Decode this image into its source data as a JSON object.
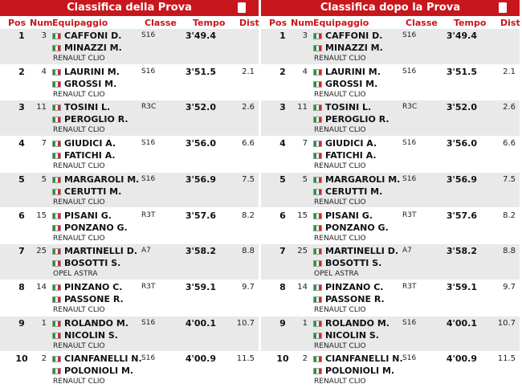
{
  "panels": [
    {
      "title": "Classifica della Prova"
    },
    {
      "title": "Classifica dopo la Prova"
    }
  ],
  "columns": {
    "pos": "Pos",
    "num": "Num",
    "crew": "Equipaggio",
    "class": "Classe",
    "time": "Tempo",
    "dist": "Dist"
  },
  "rows": [
    {
      "pos": 1,
      "num": 3,
      "driver": "CAFFONI D.",
      "codriver": "MINAZZI M.",
      "car": "RENAULT CLIO",
      "class": "S16",
      "time": "3'49.4",
      "dist": null
    },
    {
      "pos": 2,
      "num": 4,
      "driver": "LAURINI M.",
      "codriver": "GROSSI M.",
      "car": "RENAULT CLIO",
      "class": "S16",
      "time": "3'51.5",
      "dist": 2.1
    },
    {
      "pos": 3,
      "num": 11,
      "driver": "TOSINI L.",
      "codriver": "PEROGLIO R.",
      "car": "RENAULT CLIO",
      "class": "R3C",
      "time": "3'52.0",
      "dist": 2.6
    },
    {
      "pos": 4,
      "num": 7,
      "driver": "GIUDICI A.",
      "codriver": "FATICHI A.",
      "car": "RENAULT CLIO",
      "class": "S16",
      "time": "3'56.0",
      "dist": 6.6
    },
    {
      "pos": 5,
      "num": 5,
      "driver": "MARGAROLI M.",
      "codriver": "CERUTTI M.",
      "car": "RENAULT CLIO",
      "class": "S16",
      "time": "3'56.9",
      "dist": 7.5
    },
    {
      "pos": 6,
      "num": 15,
      "driver": "PISANI G.",
      "codriver": "PONZANO G.",
      "car": "RENAULT CLIO",
      "class": "R3T",
      "time": "3'57.6",
      "dist": 8.2
    },
    {
      "pos": 7,
      "num": 25,
      "driver": "MARTINELLI D.",
      "codriver": "BOSOTTI S.",
      "car": "OPEL ASTRA",
      "class": "A7",
      "time": "3'58.2",
      "dist": 8.8
    },
    {
      "pos": 8,
      "num": 14,
      "driver": "PINZANO C.",
      "codriver": "PASSONE R.",
      "car": "RENAULT CLIO",
      "class": "R3T",
      "time": "3'59.1",
      "dist": 9.7
    },
    {
      "pos": 9,
      "num": 1,
      "driver": "ROLANDO M.",
      "codriver": "NICOLIN S.",
      "car": "RENAULT CLIO",
      "class": "S16",
      "time": "4'00.1",
      "dist": 10.7
    },
    {
      "pos": 10,
      "num": 2,
      "driver": "CIANFANELLI N.",
      "codriver": "POLONIOLI M.",
      "car": "RENAULT CLIO",
      "class": "S16",
      "time": "4'00.9",
      "dist": 11.5
    }
  ]
}
